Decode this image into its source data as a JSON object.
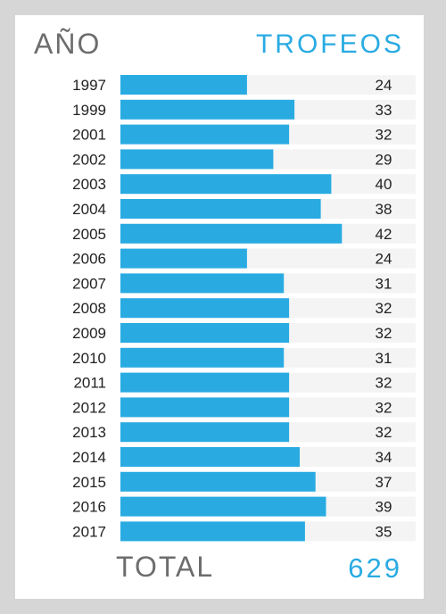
{
  "header": {
    "year_label": "AÑO",
    "trophies_label": "TROFEOS"
  },
  "footer": {
    "total_label": "TOTAL",
    "total_value": "629"
  },
  "colors": {
    "bar": "#29abe2",
    "track": "#f4f4f4",
    "text": "#222222",
    "accent": "#29abe2"
  },
  "chart_data": {
    "type": "bar",
    "orientation": "horizontal",
    "categories": [
      "1997",
      "1999",
      "2001",
      "2002",
      "2003",
      "2004",
      "2005",
      "2006",
      "2007",
      "2008",
      "2009",
      "2010",
      "2011",
      "2012",
      "2013",
      "2014",
      "2015",
      "2016",
      "2017"
    ],
    "values": [
      24,
      33,
      32,
      29,
      40,
      38,
      42,
      24,
      31,
      32,
      32,
      31,
      32,
      32,
      32,
      34,
      37,
      39,
      35
    ],
    "xlim": [
      0,
      56
    ],
    "title": "",
    "xlabel": "TROFEOS",
    "ylabel": "AÑO"
  }
}
